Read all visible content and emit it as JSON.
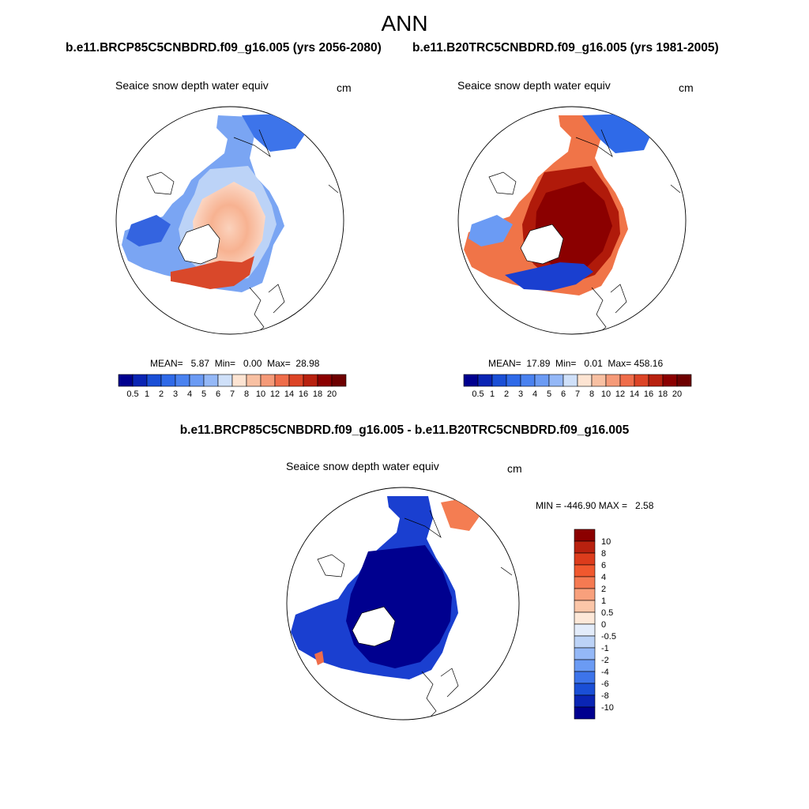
{
  "header": {
    "season": "ANN",
    "case_title_left": "b.e11.BRCP85C5CNBDRD.f09_g16.005 (yrs 2056-2080)",
    "case_title_right": "b.e11.B20TRC5CNBDRD.f09_g16.005 (yrs 1981-2005)",
    "diff_title": "b.e11.BRCP85C5CNBDRD.f09_g16.005 - b.e11.B20TRC5CNBDRD.f09_g16.005"
  },
  "chart_data": [
    {
      "type": "heatmap",
      "projection": "north polar stereographic",
      "title": "Seaice snow depth water equiv",
      "units": "cm",
      "stats_text": "MEAN=   5.87  Min=   0.00  Max=  28.98",
      "stats": {
        "mean": 5.87,
        "min": 0.0,
        "max": 28.98
      },
      "colorbar_levels": [
        "0.5",
        "1",
        "2",
        "3",
        "4",
        "5",
        "6",
        "7",
        "8",
        "10",
        "12",
        "14",
        "16",
        "18",
        "20"
      ],
      "colorbar_colors": [
        "#00008f",
        "#0a25b4",
        "#1a4fd6",
        "#2f6ae8",
        "#4a82f0",
        "#6b9bf4",
        "#94b8f7",
        "#cfe0f9",
        "#fde4d2",
        "#f8c0a2",
        "#f59a78",
        "#ef6d4a",
        "#dc4426",
        "#b8210f",
        "#8b0000",
        "#6e0000"
      ]
    },
    {
      "type": "heatmap",
      "projection": "north polar stereographic",
      "title": "Seaice snow depth water equiv",
      "units": "cm",
      "stats_text": "MEAN=  17.89  Min=   0.01  Max= 458.16",
      "stats": {
        "mean": 17.89,
        "min": 0.01,
        "max": 458.16
      },
      "colorbar_levels": [
        "0.5",
        "1",
        "2",
        "3",
        "4",
        "5",
        "6",
        "7",
        "8",
        "10",
        "12",
        "14",
        "16",
        "18",
        "20"
      ],
      "colorbar_colors": [
        "#00008f",
        "#0a25b4",
        "#1a4fd6",
        "#2f6ae8",
        "#4a82f0",
        "#6b9bf4",
        "#94b8f7",
        "#cfe0f9",
        "#fde4d2",
        "#f8c0a2",
        "#f59a78",
        "#ef6d4a",
        "#dc4426",
        "#b8210f",
        "#8b0000",
        "#6e0000"
      ]
    },
    {
      "type": "heatmap",
      "projection": "north polar stereographic",
      "title": "Seaice snow depth water equiv",
      "units": "cm",
      "stats_text": "MIN = -446.90 MAX =   2.58",
      "stats": {
        "min": -446.9,
        "max": 2.58
      },
      "colorbar_levels": [
        "10",
        "8",
        "6",
        "4",
        "2",
        "1",
        "0.5",
        "0",
        "-0.5",
        "-1",
        "-2",
        "-4",
        "-6",
        "-8",
        "-10"
      ],
      "colorbar_colors": [
        "#8b0000",
        "#b8210f",
        "#dc3c1c",
        "#f0582e",
        "#f57a52",
        "#f8a07c",
        "#fbc6a8",
        "#fde8d8",
        "#e3ecfa",
        "#bcd3f7",
        "#94b8f7",
        "#6b9bf4",
        "#3d74ea",
        "#1a4fd6",
        "#0a25b4",
        "#00008f"
      ]
    }
  ]
}
